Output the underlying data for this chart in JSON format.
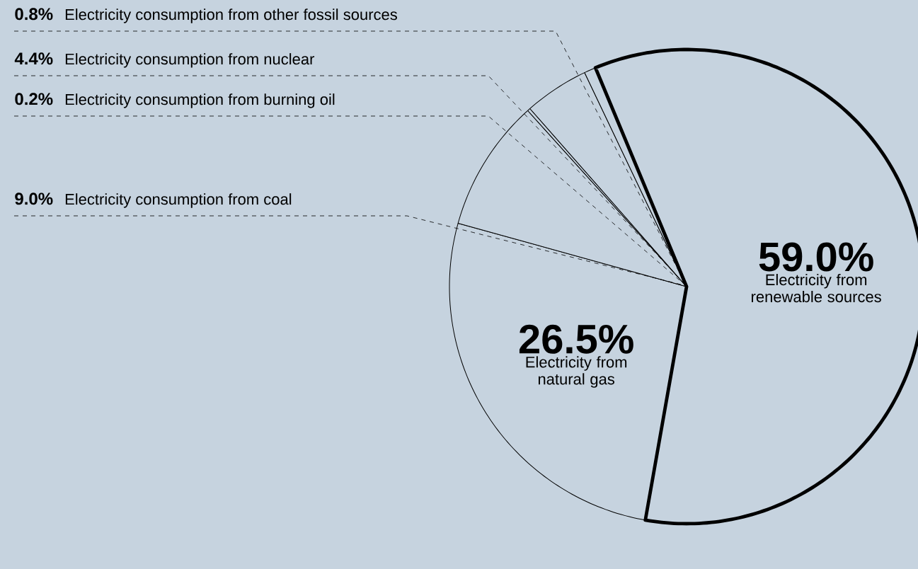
{
  "chart_data": {
    "type": "pie",
    "categories": [
      "Electricity from renewable sources",
      "Electricity from natural gas",
      "Electricity consumption from coal",
      "Electricity consumption from burning oil",
      "Electricity consumption from nuclear",
      "Electricity consumption from other fossil sources"
    ],
    "values": [
      59.0,
      26.5,
      9.0,
      0.2,
      4.4,
      0.8
    ],
    "value_labels": [
      "59.0%",
      "26.5%",
      "9.0%",
      "0.2%",
      "4.4%",
      "0.8%"
    ],
    "colors": [
      "#c6d3df",
      "#c6d3df",
      "#c6d3df",
      "#c6d3df",
      "#c6d3df",
      "#c6d3df"
    ]
  }
}
